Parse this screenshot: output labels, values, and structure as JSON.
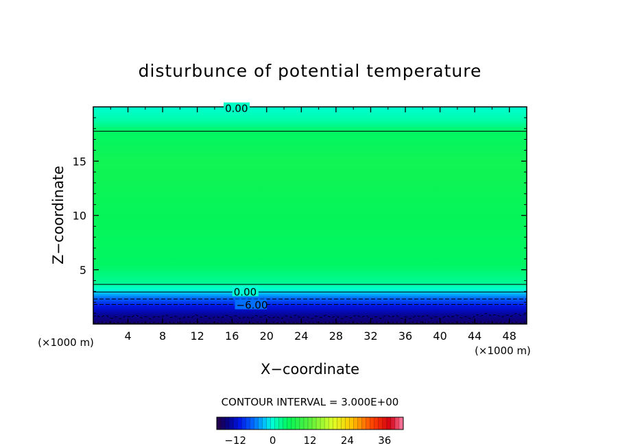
{
  "chart_data": {
    "type": "heatmap",
    "title": "disturbunce of potential temperature",
    "xlabel": "X−coordinate",
    "ylabel": "Z−coordinate",
    "x_unit": "(×1000 m)",
    "y_unit": "(×1000 m)",
    "xlim": [
      0,
      50
    ],
    "ylim": [
      0,
      20
    ],
    "xticks": [
      4,
      8,
      12,
      16,
      20,
      24,
      28,
      32,
      36,
      40,
      44,
      48
    ],
    "yticks": [
      5,
      10,
      15
    ],
    "x_tick_labels": [
      "4",
      "8",
      "12",
      "16",
      "20",
      "24",
      "28",
      "32",
      "36",
      "40",
      "44",
      "48"
    ],
    "y_tick_labels": [
      "5",
      "10",
      "15"
    ],
    "colorscale": {
      "min": -18,
      "max": 42,
      "ticks": [
        -12,
        0,
        12,
        24,
        36
      ],
      "tick_labels": [
        "−12",
        "0",
        "12",
        "24",
        "36"
      ]
    },
    "vertical_profile": [
      {
        "z": 0.0,
        "value": -16
      },
      {
        "z": 0.8,
        "value": -14
      },
      {
        "z": 1.6,
        "value": -11
      },
      {
        "z": 2.3,
        "value": -7
      },
      {
        "z": 2.8,
        "value": -3
      },
      {
        "z": 3.2,
        "value": 0
      },
      {
        "z": 3.8,
        "value": 2.5
      },
      {
        "z": 5.5,
        "value": 4.5
      },
      {
        "z": 10.0,
        "value": 5.2
      },
      {
        "z": 15.0,
        "value": 6.2
      },
      {
        "z": 17.7,
        "value": 4.5
      },
      {
        "z": 18.8,
        "value": 1.5
      },
      {
        "z": 20.0,
        "value": 0
      }
    ],
    "contour_interval": 3.0,
    "contour_labels": [
      {
        "text": "0.00",
        "x": 15.2,
        "z": 19.9
      },
      {
        "text": "0.00",
        "x": 16.2,
        "z": 3.0
      },
      {
        "text": "−6.00",
        "x": 16.5,
        "z": 1.8
      }
    ],
    "contour_interval_label": "CONTOUR INTERVAL = 3.000E+00",
    "grid": false,
    "legend": "colorbar-bottom"
  }
}
